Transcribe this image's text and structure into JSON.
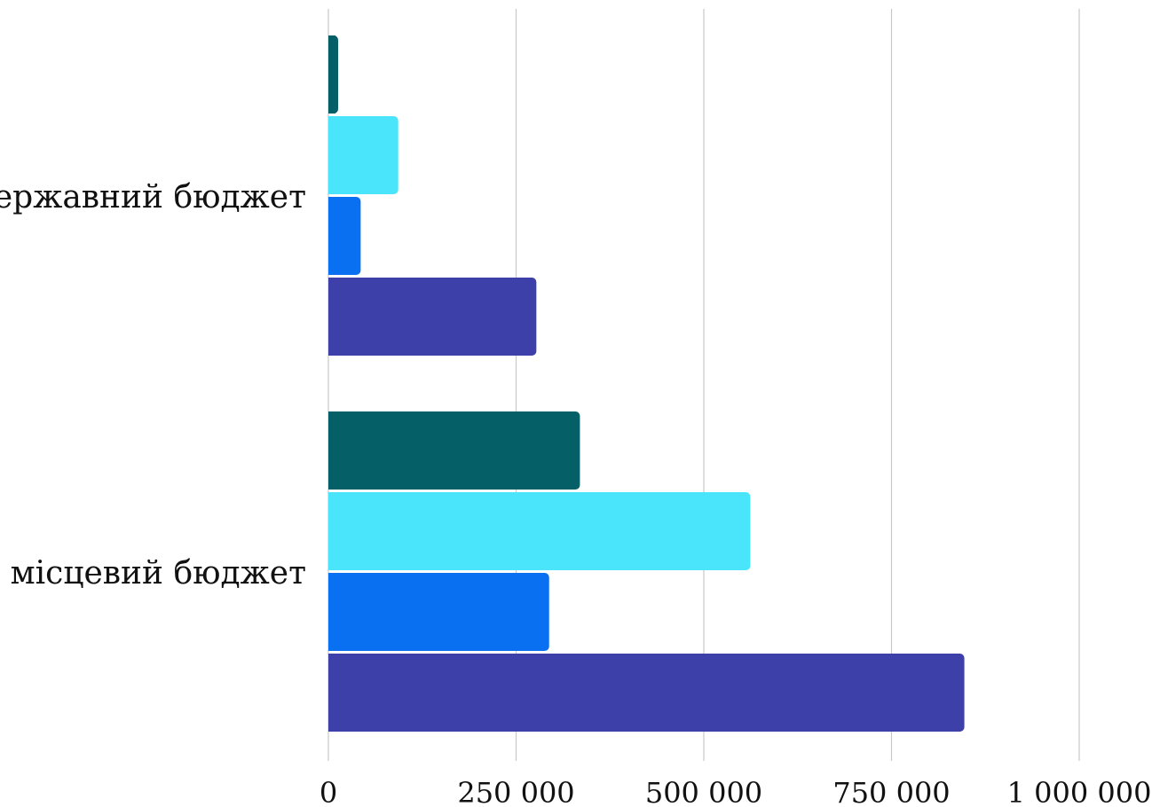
{
  "chart_data": {
    "type": "bar",
    "orientation": "horizontal",
    "categories": [
      "державний бюджет",
      "місцевий бюджет"
    ],
    "series": [
      {
        "color": "#045f66",
        "values": [
          13000,
          335000
        ]
      },
      {
        "color": "#4be5fb",
        "values": [
          93000,
          562000
        ]
      },
      {
        "color": "#0971f1",
        "values": [
          43000,
          294000
        ]
      },
      {
        "color": "#3d40a9",
        "values": [
          277000,
          847000
        ]
      }
    ],
    "xlim": [
      0,
      1000000
    ],
    "xticks": [
      0,
      250000,
      500000,
      750000,
      1000000
    ],
    "xtick_labels": [
      "0",
      "250 000",
      "500 000",
      "750 000",
      "1 000 000"
    ],
    "grid": "vertical",
    "legend": "none",
    "title": "",
    "xlabel": "",
    "ylabel": ""
  }
}
